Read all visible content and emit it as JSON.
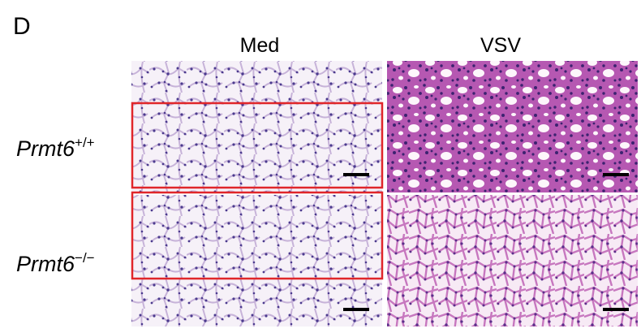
{
  "panel_label": "D",
  "columns": [
    "Med",
    "VSV"
  ],
  "rows": [
    {
      "name": "Prmt6",
      "sup": "+/+"
    },
    {
      "name": "Prmt6",
      "sup": "−/−"
    }
  ]
}
